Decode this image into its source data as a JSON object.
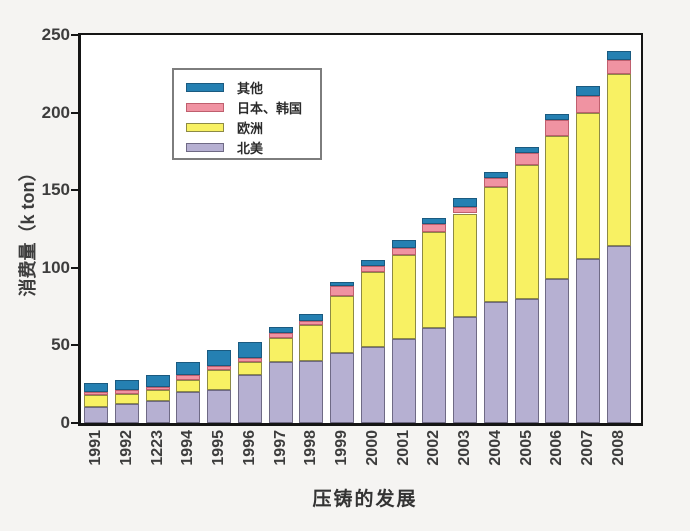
{
  "axes": {
    "ylabel": "消费量（k ton）",
    "xlabel": "压铸的发展"
  },
  "chart_data": {
    "type": "bar",
    "stacked": true,
    "title": "",
    "xlabel": "压铸的发展",
    "ylabel": "消费量（k ton）",
    "ylim": [
      0,
      250
    ],
    "yticks": [
      0,
      50,
      100,
      150,
      200,
      250
    ],
    "grid": false,
    "legend_position": "upper-left-inside",
    "categories": [
      "1991",
      "1992",
      "1223",
      "1994",
      "1995",
      "1996",
      "1997",
      "1998",
      "1999",
      "2000",
      "2001",
      "2002",
      "2003",
      "2004",
      "2005",
      "2006",
      "2007",
      "2008"
    ],
    "series": [
      {
        "name": "北美",
        "key": "north-america",
        "color": "#b6b0d2",
        "border": "#6f6a85",
        "values": [
          10,
          12,
          14,
          20,
          21,
          31,
          39,
          40,
          45,
          49,
          54,
          61,
          68,
          78,
          80,
          93,
          106,
          114
        ]
      },
      {
        "name": "欧洲",
        "key": "europe",
        "color": "#f8f163",
        "border": "#8d8a45",
        "values": [
          8,
          7,
          7,
          8,
          13,
          8,
          16,
          23,
          37,
          48,
          54,
          62,
          67,
          74,
          86,
          92,
          94,
          111
        ]
      },
      {
        "name": "日本、韩国",
        "key": "japan-korea",
        "color": "#f093a2",
        "border": "#bf5f6e",
        "values": [
          2,
          2,
          2,
          3,
          3,
          3,
          3,
          3,
          6,
          4,
          5,
          5,
          4,
          6,
          8,
          10,
          11,
          9
        ]
      },
      {
        "name": "其他",
        "key": "other",
        "color": "#2580b2",
        "border": "#1a5a80",
        "values": [
          6,
          7,
          8,
          8,
          10,
          10,
          4,
          4,
          3,
          4,
          5,
          4,
          6,
          4,
          4,
          4,
          6,
          6
        ]
      }
    ],
    "totals": [
      26,
      28,
      31,
      39,
      47,
      52,
      62,
      70,
      91,
      105,
      118,
      132,
      145,
      162,
      178,
      199,
      217,
      240
    ]
  }
}
